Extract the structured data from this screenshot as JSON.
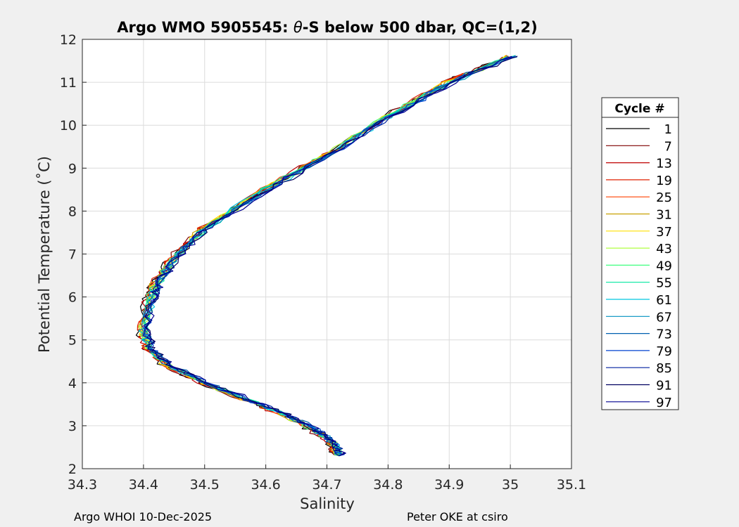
{
  "chart_data": {
    "type": "line",
    "title_prefix": "Argo WMO 5905545: ",
    "title_theta": "θ",
    "title_suffix": "-S below 500 dbar,  QC=(1,2)",
    "xlabel": "Salinity",
    "ylabel": "Potential Temperature (˚C)",
    "xlim": [
      34.3,
      35.1
    ],
    "ylim": [
      2,
      12
    ],
    "xticks": [
      "34.3",
      "34.4",
      "34.5",
      "34.6",
      "34.7",
      "34.8",
      "34.9",
      "35",
      "35.1"
    ],
    "yticks": [
      "2",
      "3",
      "4",
      "5",
      "6",
      "7",
      "8",
      "9",
      "10",
      "11",
      "12"
    ],
    "grid": true,
    "legend": {
      "title": "Cycle #",
      "placement": "right",
      "entries": [
        "1",
        "7",
        "13",
        "19",
        "25",
        "31",
        "37",
        "43",
        "49",
        "55",
        "61",
        "67",
        "73",
        "79",
        "85",
        "91",
        "97"
      ],
      "colors": [
        "#000000",
        "#7f0000",
        "#c00000",
        "#e02000",
        "#ff4000",
        "#c8a000",
        "#ffe000",
        "#b0ff40",
        "#40ff80",
        "#00e8a0",
        "#00c8e0",
        "#0090c0",
        "#0060b0",
        "#0040d0",
        "#0020a0",
        "#000060",
        "#000090"
      ]
    },
    "profile_shape": {
      "salinity": [
        35.0,
        34.9,
        34.8,
        34.7,
        34.6,
        34.5,
        34.45,
        34.42,
        34.41,
        34.4,
        34.41,
        34.44,
        34.5,
        34.58,
        34.64,
        34.68,
        34.71,
        34.72
      ],
      "theta": [
        11.6,
        11.0,
        10.2,
        9.3,
        8.5,
        7.6,
        6.9,
        6.3,
        5.9,
        5.2,
        4.8,
        4.4,
        4.0,
        3.55,
        3.2,
        2.9,
        2.6,
        2.3
      ]
    }
  },
  "footer": {
    "left": "Argo WHOI 10-Dec-2025",
    "right": "Peter OKE at csiro"
  }
}
